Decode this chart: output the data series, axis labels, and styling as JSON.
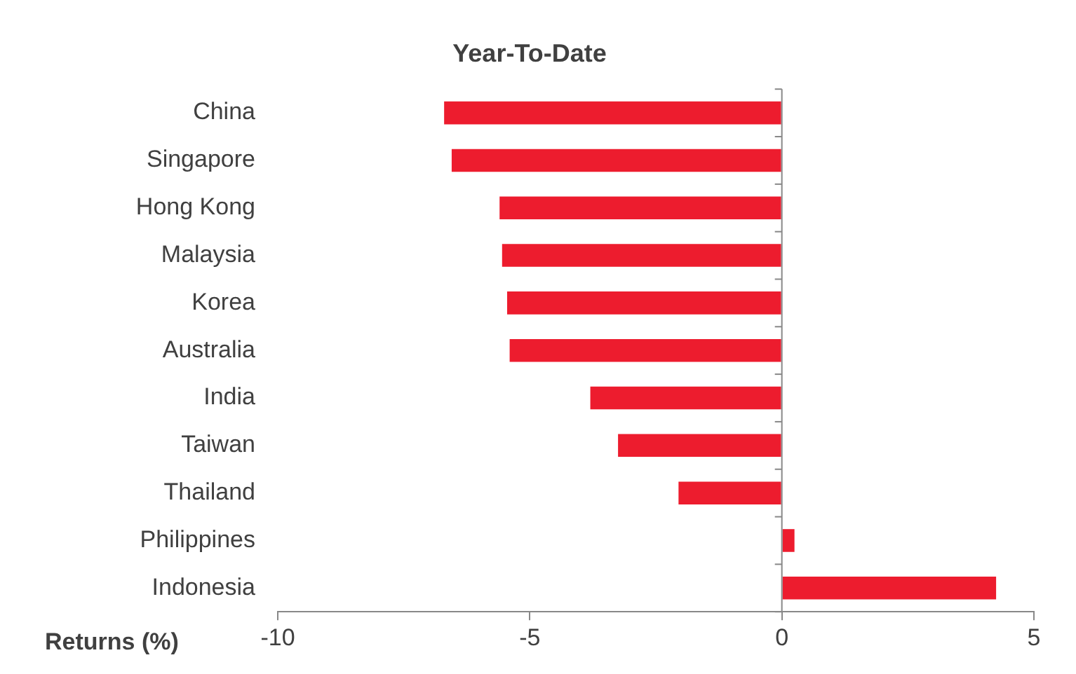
{
  "chart_data": {
    "type": "bar",
    "orientation": "horizontal",
    "title": "Year-To-Date",
    "xlabel": "Returns (%)",
    "categories": [
      "China",
      "Singapore",
      "Hong Kong",
      "Malaysia",
      "Korea",
      "Australia",
      "India",
      "Taiwan",
      "Thailand",
      "Philippines",
      "Indonesia"
    ],
    "values": [
      -6.7,
      -6.55,
      -5.6,
      -5.55,
      -5.45,
      -5.4,
      -3.8,
      -3.25,
      -2.05,
      0.25,
      4.25
    ],
    "color": "#ed1c2e",
    "xlim": [
      -10,
      5
    ],
    "xticks": [
      -10,
      -5,
      0,
      5
    ],
    "legend": false
  }
}
